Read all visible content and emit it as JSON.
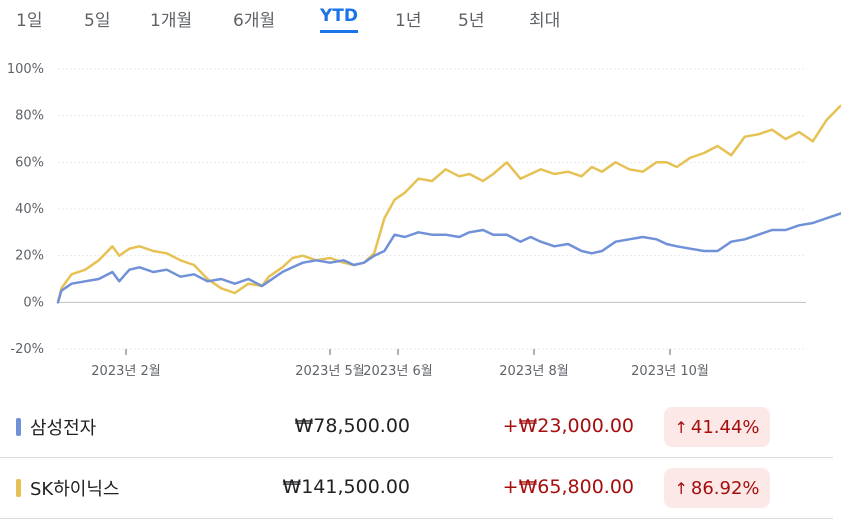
{
  "tabs": [
    {
      "label": "1일",
      "active": false
    },
    {
      "label": "5일",
      "active": false
    },
    {
      "label": "1개월",
      "active": false
    },
    {
      "label": "6개월",
      "active": false
    },
    {
      "label": "YTD",
      "active": true
    },
    {
      "label": "1년",
      "active": false
    },
    {
      "label": "5년",
      "active": false
    },
    {
      "label": "최대",
      "active": false
    }
  ],
  "chart_data": {
    "type": "line",
    "title": "",
    "xlabel": "",
    "ylabel": "",
    "ylim": [
      -20,
      100
    ],
    "y_ticks": [
      "100%",
      "80%",
      "60%",
      "40%",
      "20%",
      "0%",
      "-20%"
    ],
    "x_ticks": [
      {
        "label": "2023년 2월",
        "x": 1.0
      },
      {
        "label": "2023년 5월",
        "x": 4.0
      },
      {
        "label": "2023년 6월",
        "x": 5.0
      },
      {
        "label": "2023년 8월",
        "x": 7.0
      },
      {
        "label": "2023년 10월",
        "x": 9.0
      }
    ],
    "x_unit": "months since Jan 2023",
    "xlim": [
      0,
      11
    ],
    "grid": true,
    "series": [
      {
        "name": "삼성전자",
        "color": "#7090d8",
        "points": [
          [
            0.0,
            0
          ],
          [
            0.05,
            5
          ],
          [
            0.2,
            8
          ],
          [
            0.4,
            9
          ],
          [
            0.6,
            10
          ],
          [
            0.8,
            13
          ],
          [
            0.9,
            9
          ],
          [
            1.05,
            14
          ],
          [
            1.2,
            15
          ],
          [
            1.4,
            13
          ],
          [
            1.6,
            14
          ],
          [
            1.8,
            11
          ],
          [
            2.0,
            12
          ],
          [
            2.2,
            9
          ],
          [
            2.4,
            10
          ],
          [
            2.6,
            8
          ],
          [
            2.8,
            10
          ],
          [
            3.0,
            7
          ],
          [
            3.1,
            9
          ],
          [
            3.3,
            13
          ],
          [
            3.45,
            15
          ],
          [
            3.6,
            17
          ],
          [
            3.8,
            18
          ],
          [
            4.0,
            17
          ],
          [
            4.2,
            18
          ],
          [
            4.35,
            16
          ],
          [
            4.5,
            17
          ],
          [
            4.65,
            20
          ],
          [
            4.8,
            22
          ],
          [
            4.95,
            29
          ],
          [
            5.1,
            28
          ],
          [
            5.3,
            30
          ],
          [
            5.5,
            29
          ],
          [
            5.7,
            29
          ],
          [
            5.9,
            28
          ],
          [
            6.05,
            30
          ],
          [
            6.25,
            31
          ],
          [
            6.4,
            29
          ],
          [
            6.6,
            29
          ],
          [
            6.8,
            26
          ],
          [
            6.95,
            28
          ],
          [
            7.1,
            26
          ],
          [
            7.3,
            24
          ],
          [
            7.5,
            25
          ],
          [
            7.7,
            22
          ],
          [
            7.85,
            21
          ],
          [
            8.0,
            22
          ],
          [
            8.2,
            26
          ],
          [
            8.4,
            27
          ],
          [
            8.6,
            28
          ],
          [
            8.8,
            27
          ],
          [
            8.95,
            25
          ],
          [
            9.1,
            24
          ],
          [
            9.3,
            23
          ],
          [
            9.5,
            22
          ],
          [
            9.7,
            22
          ],
          [
            9.9,
            26
          ],
          [
            10.1,
            27
          ],
          [
            10.3,
            29
          ],
          [
            10.5,
            31
          ],
          [
            10.7,
            31
          ],
          [
            10.9,
            33
          ],
          [
            11.1,
            34
          ],
          [
            11.3,
            36
          ],
          [
            11.5,
            38
          ],
          [
            11.75,
            41.44
          ]
        ]
      },
      {
        "name": "SK하이닉스",
        "color": "#e6c154",
        "points": [
          [
            0.0,
            0
          ],
          [
            0.05,
            6
          ],
          [
            0.2,
            12
          ],
          [
            0.4,
            14
          ],
          [
            0.6,
            18
          ],
          [
            0.8,
            24
          ],
          [
            0.9,
            20
          ],
          [
            1.05,
            23
          ],
          [
            1.2,
            24
          ],
          [
            1.4,
            22
          ],
          [
            1.6,
            21
          ],
          [
            1.8,
            18
          ],
          [
            2.0,
            16
          ],
          [
            2.2,
            10
          ],
          [
            2.4,
            6
          ],
          [
            2.6,
            4
          ],
          [
            2.8,
            8
          ],
          [
            3.0,
            7
          ],
          [
            3.1,
            11
          ],
          [
            3.3,
            15
          ],
          [
            3.45,
            19
          ],
          [
            3.6,
            20
          ],
          [
            3.8,
            18
          ],
          [
            4.0,
            19
          ],
          [
            4.2,
            17
          ],
          [
            4.35,
            16
          ],
          [
            4.5,
            17
          ],
          [
            4.65,
            21
          ],
          [
            4.8,
            36
          ],
          [
            4.95,
            44
          ],
          [
            5.1,
            47
          ],
          [
            5.3,
            53
          ],
          [
            5.5,
            52
          ],
          [
            5.7,
            57
          ],
          [
            5.9,
            54
          ],
          [
            6.05,
            55
          ],
          [
            6.25,
            52
          ],
          [
            6.4,
            55
          ],
          [
            6.6,
            60
          ],
          [
            6.8,
            53
          ],
          [
            6.95,
            55
          ],
          [
            7.1,
            57
          ],
          [
            7.3,
            55
          ],
          [
            7.5,
            56
          ],
          [
            7.7,
            54
          ],
          [
            7.85,
            58
          ],
          [
            8.0,
            56
          ],
          [
            8.2,
            60
          ],
          [
            8.4,
            57
          ],
          [
            8.6,
            56
          ],
          [
            8.8,
            60
          ],
          [
            8.95,
            60
          ],
          [
            9.1,
            58
          ],
          [
            9.3,
            62
          ],
          [
            9.5,
            64
          ],
          [
            9.7,
            67
          ],
          [
            9.9,
            63
          ],
          [
            10.1,
            71
          ],
          [
            10.3,
            72
          ],
          [
            10.5,
            74
          ],
          [
            10.7,
            70
          ],
          [
            10.9,
            73
          ],
          [
            11.1,
            69
          ],
          [
            11.3,
            78
          ],
          [
            11.5,
            84
          ],
          [
            11.75,
            86.92
          ]
        ]
      }
    ]
  },
  "legend": [
    {
      "name": "삼성전자",
      "color": "#7090d8",
      "price": "₩78,500.00",
      "change": "+₩23,000.00",
      "percent": "41.44%"
    },
    {
      "name": "SK하이닉스",
      "color": "#e6c154",
      "price": "₩141,500.00",
      "change": "+₩65,800.00",
      "percent": "86.92%"
    }
  ]
}
